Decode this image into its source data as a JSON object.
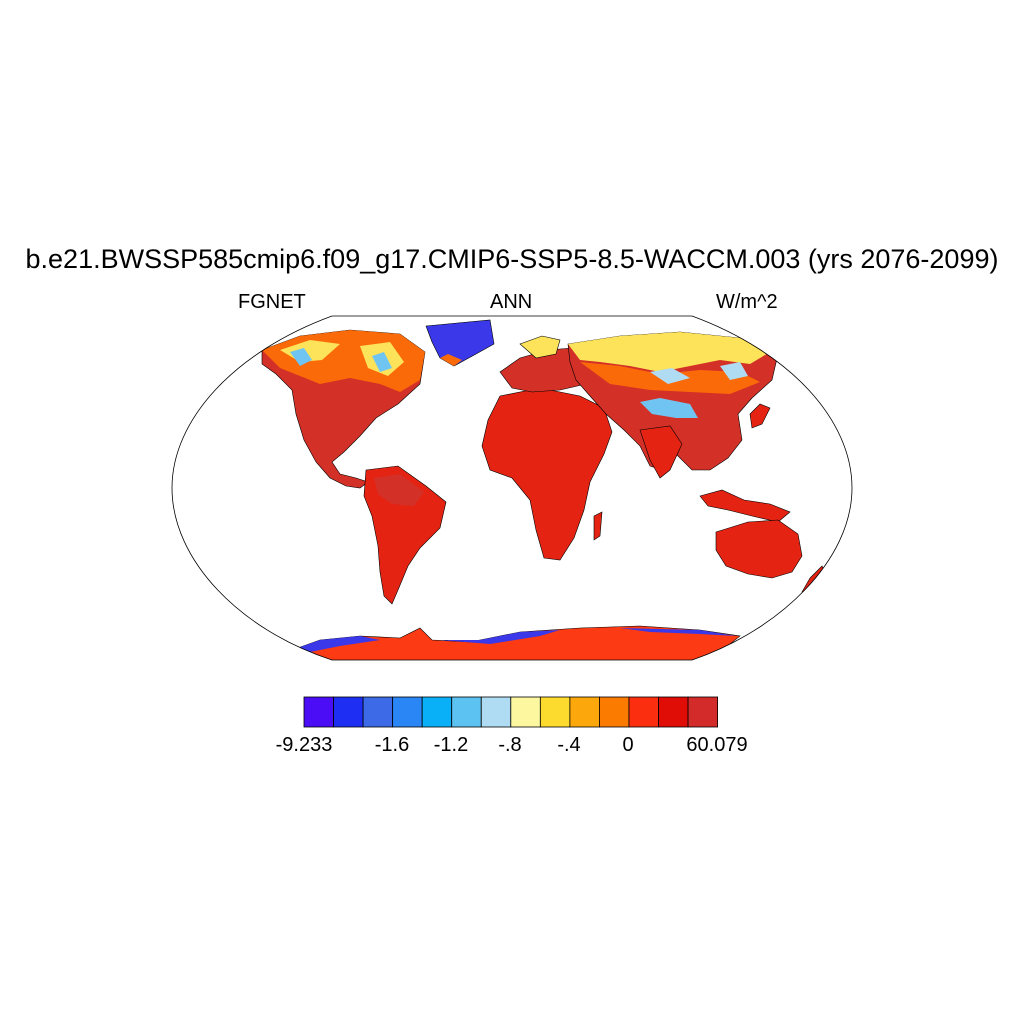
{
  "title": "b.e21.BWSSP585cmip6.f09_g17.CMIP6-SSP5-8.5-WACCM.003 (yrs 2076-2099)",
  "left_string": "FGNET",
  "center_string": "ANN",
  "right_string": "W/m^2",
  "colorbar": {
    "colors": [
      "#4a0df5",
      "#1e2ef2",
      "#3d6ae6",
      "#2a86f5",
      "#0ab0f7",
      "#5cc2f2",
      "#afdcf2",
      "#fdf7a0",
      "#fddb2e",
      "#fca80c",
      "#fb7a00",
      "#fc2e10",
      "#e00c06",
      "#d32a2a"
    ],
    "labels": [
      "-9.233",
      "-1.6",
      "-1.2",
      "-.8",
      "-.4",
      "0",
      "60.079"
    ]
  },
  "map_colors": {
    "land_warm": "#e52313",
    "land_hot": "#d33027",
    "land_orange": "#fb6a08",
    "arctic_yellow": "#fde35a",
    "arctic_light": "#c9e6f4",
    "ice_blue": "#3a38e8",
    "antarctic": "#fc3a14"
  }
}
